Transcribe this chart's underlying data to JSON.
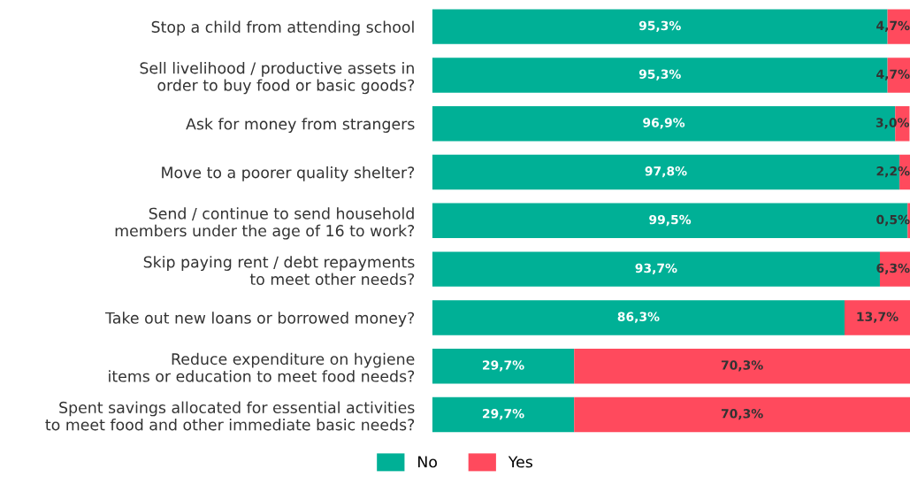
{
  "chart_data": {
    "type": "bar",
    "orientation": "horizontal",
    "stacked": true,
    "legend": "bottom",
    "grid": false,
    "tick_labels": "y",
    "categories": [
      "Stop a child from attending school",
      "Sell livelihood / productive assets in\norder to buy food or basic goods?",
      "Ask for money from strangers",
      "Move to a poorer quality shelter?",
      "Send / continue to send household\nmembers under the age of 16 to work?",
      "Skip paying rent / debt repayments\nto meet other needs?",
      "Take out new loans or borrowed money?",
      "Reduce expenditure on hygiene\nitems or education to meet food needs?",
      "Spent savings allocated for essential activities\nto meet food and other immediate basic needs?"
    ],
    "series": [
      {
        "name": "No",
        "color": "#00b096",
        "values": [
          95.3,
          95.3,
          96.9,
          97.8,
          99.5,
          93.7,
          86.3,
          29.7,
          29.7
        ],
        "value_labels": [
          "95,3%",
          "95,3%",
          "96,9%",
          "97,8%",
          "99,5%",
          "93,7%",
          "86,3%",
          "29,7%",
          "29,7%"
        ]
      },
      {
        "name": "Yes",
        "color": "#ff4a5d",
        "values": [
          4.7,
          4.7,
          3.0,
          2.2,
          0.5,
          6.3,
          13.7,
          70.3,
          70.3
        ],
        "value_labels": [
          "4,7%",
          "4,7%",
          "3,0%",
          "2,2%",
          "0,5%",
          "6,3%",
          "13,7%",
          "70,3%",
          "70,3%"
        ]
      }
    ]
  }
}
